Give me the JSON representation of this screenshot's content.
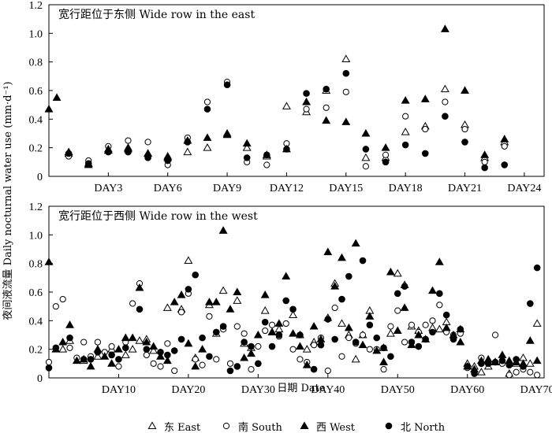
{
  "y_axis_label": "夜间液流量 Daily nocturnal water use (mm·d⁻¹)",
  "x_axis_label": "日期 Date",
  "legend": [
    {
      "key": "east",
      "label": "东 East",
      "marker": "open-triangle"
    },
    {
      "key": "south",
      "label": "南 South",
      "marker": "open-circle"
    },
    {
      "key": "west",
      "label": "西 West",
      "marker": "filled-triangle"
    },
    {
      "key": "north",
      "label": "北 North",
      "marker": "filled-circle"
    }
  ],
  "chart_data": [
    {
      "type": "scatter",
      "title": "宽行距位于东侧 Wide row in the east",
      "xlabel": "日期 Date",
      "ylabel": "夜间液流量 Daily nocturnal water use (mm·d⁻¹)",
      "xlim": [
        0,
        25
      ],
      "ylim": [
        0,
        1.2
      ],
      "yticks": [
        "0",
        "0.2",
        "0.4",
        "0.6",
        "0.8",
        "1.0",
        "1.2"
      ],
      "xticks": [
        {
          "x": 3,
          "label": "DAY3"
        },
        {
          "x": 6,
          "label": "DAY6"
        },
        {
          "x": 9,
          "label": "DAY9"
        },
        {
          "x": 12,
          "label": "DAY12"
        },
        {
          "x": 15,
          "label": "DAY15"
        },
        {
          "x": 18,
          "label": "DAY18"
        },
        {
          "x": 21,
          "label": "DAY21"
        },
        {
          "x": 24,
          "label": "DAY24"
        }
      ],
      "series": [
        {
          "name": "东 East",
          "x": [
            1,
            2,
            3,
            4,
            5,
            6,
            7,
            8,
            9,
            10,
            11,
            12,
            13,
            14,
            15,
            16,
            17,
            18,
            19,
            20,
            21,
            22,
            23
          ],
          "values": [
            0.16,
            0.09,
            0.18,
            0.2,
            0.16,
            0.13,
            0.17,
            0.2,
            0.3,
            0.2,
            0.14,
            0.49,
            0.45,
            0.6,
            0.82,
            0.13,
            0.13,
            0.31,
            0.35,
            0.61,
            0.36,
            0.13,
            0.24
          ]
        },
        {
          "name": "南 South",
          "x": [
            1,
            2,
            3,
            4,
            5,
            6,
            7,
            8,
            9,
            10,
            11,
            12,
            13,
            14,
            15,
            16,
            17,
            18,
            19,
            20,
            21,
            22,
            23
          ],
          "values": [
            0.14,
            0.11,
            0.21,
            0.25,
            0.24,
            0.08,
            0.27,
            0.52,
            0.66,
            0.1,
            0.08,
            0.23,
            0.47,
            0.48,
            0.59,
            0.07,
            0.15,
            0.42,
            0.33,
            0.52,
            0.33,
            0.1,
            0.21
          ]
        },
        {
          "name": "西 West",
          "x": [
            0,
            0.4,
            1,
            2,
            3,
            4,
            5,
            6,
            7,
            8,
            9,
            10,
            11,
            12,
            13,
            14,
            15,
            16,
            17,
            18,
            19,
            20,
            21,
            22,
            23
          ],
          "values": [
            0.47,
            0.55,
            0.17,
            0.08,
            0.19,
            0.19,
            0.16,
            0.14,
            0.25,
            0.27,
            0.29,
            0.23,
            0.15,
            0.19,
            0.52,
            0.39,
            0.38,
            0.3,
            0.2,
            0.53,
            0.54,
            1.03,
            0.6,
            0.15,
            0.26
          ]
        },
        {
          "name": "北 North",
          "x": [
            1,
            2,
            3,
            4,
            5,
            6,
            7,
            8,
            9,
            10,
            11,
            12,
            13,
            14,
            15,
            16,
            17,
            18,
            19,
            20,
            21,
            22,
            23
          ],
          "values": [
            0.16,
            0.09,
            0.17,
            0.17,
            0.13,
            0.11,
            0.24,
            0.47,
            0.64,
            0.13,
            0.15,
            0.19,
            0.58,
            0.61,
            0.72,
            0.19,
            0.1,
            0.22,
            0.16,
            0.42,
            0.24,
            0.06,
            0.08
          ]
        }
      ]
    },
    {
      "type": "scatter",
      "title": "宽行距位于西侧 Wide row in the west",
      "xlabel": "日期 Date",
      "ylabel": "夜间液流量 Daily nocturnal water use (mm·d⁻¹)",
      "xlim": [
        0,
        71
      ],
      "ylim": [
        0,
        1.2
      ],
      "yticks": [
        "0",
        "0.2",
        "0.4",
        "0.6",
        "0.8",
        "1.0",
        "1.2"
      ],
      "xticks": [
        {
          "x": 10,
          "label": "DAY10"
        },
        {
          "x": 20,
          "label": "DAY20"
        },
        {
          "x": 30,
          "label": "DAY30"
        },
        {
          "x": 40,
          "label": "DAY40"
        },
        {
          "x": 50,
          "label": "DAY50"
        },
        {
          "x": 60,
          "label": "DAY60"
        },
        {
          "x": 70,
          "label": "DAY70"
        }
      ],
      "series": [
        {
          "name": "东 East",
          "x": [
            2,
            3,
            5,
            7,
            9,
            11,
            12,
            13,
            14,
            15,
            17,
            19,
            20,
            21,
            23,
            24,
            25,
            27,
            28,
            29,
            31,
            32,
            33,
            35,
            36,
            37,
            38,
            40,
            41,
            42,
            43,
            44,
            45,
            46,
            48,
            49,
            50,
            51,
            52,
            53,
            55,
            56,
            57,
            59,
            60,
            61,
            62,
            63,
            64,
            66,
            67,
            68,
            69,
            70
          ],
          "values": [
            0.2,
            0.26,
            0.12,
            0.15,
            0.2,
            0.16,
            0.2,
            0.26,
            0.27,
            0.19,
            0.49,
            0.48,
            0.82,
            0.14,
            0.51,
            0.31,
            0.61,
            0.54,
            0.24,
            0.21,
            0.47,
            0.32,
            0.34,
            0.44,
            0.3,
            0.2,
            0.25,
            0.42,
            0.66,
            0.38,
            0.3,
            0.13,
            0.3,
            0.47,
            0.21,
            0.31,
            0.73,
            0.65,
            0.36,
            0.33,
            0.35,
            0.34,
            0.39,
            0.34,
            0.1,
            0.08,
            0.04,
            0.08,
            0.11,
            0.03,
            0.1,
            0.14,
            0.1,
            0.38
          ]
        },
        {
          "name": "南 South",
          "x": [
            0,
            1,
            2,
            3,
            4,
            5,
            6,
            7,
            8,
            9,
            10,
            11,
            12,
            13,
            14,
            15,
            16,
            17,
            18,
            19,
            20,
            21,
            22,
            23,
            24,
            25,
            26,
            27,
            28,
            29,
            30,
            31,
            32,
            33,
            34,
            35,
            36,
            37,
            38,
            39,
            40,
            41,
            42,
            43,
            44,
            45,
            46,
            47,
            48,
            49,
            50,
            51,
            52,
            53,
            54,
            55,
            56,
            57,
            58,
            59,
            60,
            61,
            62,
            63,
            64,
            65,
            66,
            67,
            68,
            69,
            70
          ],
          "values": [
            0.11,
            0.5,
            0.55,
            0.21,
            0.14,
            0.25,
            0.15,
            0.25,
            0.18,
            0.22,
            0.08,
            0.25,
            0.52,
            0.66,
            0.16,
            0.1,
            0.08,
            0.24,
            0.05,
            0.46,
            0.59,
            0.13,
            0.09,
            0.43,
            0.13,
            0.34,
            0.1,
            0.36,
            0.31,
            0.06,
            0.22,
            0.33,
            0.37,
            0.29,
            0.38,
            0.2,
            0.13,
            0.11,
            0.23,
            0.28,
            0.05,
            0.49,
            0.15,
            0.28,
            0.24,
            0.3,
            0.2,
            0.2,
            0.06,
            0.36,
            0.47,
            0.25,
            0.37,
            0.32,
            0.37,
            0.4,
            0.51,
            0.32,
            0.3,
            0.31,
            0.07,
            0.04,
            0.14,
            0.1,
            0.3,
            0.1,
            0.02,
            0.04,
            0.06,
            0.04,
            0.02
          ]
        },
        {
          "name": "西 West",
          "x": [
            0,
            1,
            2,
            3,
            4,
            5,
            6,
            7,
            8,
            9,
            10,
            11,
            12,
            13,
            14,
            15,
            16,
            17,
            18,
            19,
            20,
            21,
            22,
            23,
            24,
            25,
            26,
            27,
            28,
            29,
            30,
            31,
            32,
            33,
            34,
            35,
            36,
            37,
            38,
            39,
            40,
            41,
            42,
            43,
            44,
            45,
            46,
            47,
            48,
            49,
            50,
            51,
            52,
            53,
            54,
            55,
            56,
            57,
            58,
            59,
            60,
            61,
            62,
            63,
            64,
            65,
            66,
            67,
            68,
            69,
            70
          ],
          "values": [
            0.81,
            0.2,
            0.25,
            0.37,
            0.12,
            0.13,
            0.08,
            0.2,
            0.15,
            0.1,
            0.2,
            0.28,
            0.28,
            0.63,
            0.25,
            0.22,
            0.15,
            0.12,
            0.53,
            0.58,
            0.24,
            0.08,
            0.2,
            0.53,
            0.53,
            1.03,
            0.48,
            0.6,
            0.14,
            0.17,
            0.3,
            0.58,
            0.32,
            0.38,
            0.71,
            0.31,
            0.22,
            0.09,
            0.36,
            0.27,
            0.88,
            0.64,
            0.84,
            0.35,
            0.94,
            0.23,
            0.43,
            0.19,
            0.11,
            0.74,
            0.33,
            0.49,
            0.23,
            0.3,
            0.27,
            0.61,
            0.81,
            0.35,
            0.3,
            0.25,
            0.08,
            0.06,
            0.12,
            0.13,
            0.11,
            0.16,
            0.12,
            0.11,
            0.1,
            0.26,
            0.12
          ]
        },
        {
          "name": "北 North",
          "x": [
            0,
            1,
            3,
            5,
            6,
            7,
            9,
            10,
            11,
            13,
            14,
            16,
            17,
            18,
            19,
            20,
            21,
            22,
            23,
            24,
            25,
            26,
            27,
            28,
            29,
            30,
            31,
            32,
            33,
            34,
            35,
            36,
            38,
            39,
            40,
            41,
            42,
            43,
            44,
            45,
            46,
            47,
            48,
            49,
            50,
            51,
            52,
            53,
            54,
            55,
            56,
            57,
            58,
            59,
            60,
            61,
            62,
            63,
            64,
            65,
            66,
            67,
            68,
            69,
            70
          ],
          "values": [
            0.07,
            0.21,
            0.28,
            0.13,
            0.13,
            0.18,
            0.16,
            0.13,
            0.21,
            0.48,
            0.2,
            0.18,
            0.16,
            0.19,
            0.27,
            0.62,
            0.72,
            0.28,
            0.15,
            0.32,
            0.36,
            0.05,
            0.08,
            0.25,
            0.22,
            0.1,
            0.39,
            0.22,
            0.3,
            0.54,
            0.48,
            0.3,
            0.06,
            0.23,
            0.41,
            0.27,
            0.55,
            0.71,
            0.25,
            0.82,
            0.37,
            0.28,
            0.21,
            0.15,
            0.59,
            0.64,
            0.25,
            0.22,
            0.27,
            0.32,
            0.59,
            0.44,
            0.27,
            0.34,
            0.08,
            0.03,
            0.1,
            0.1,
            0.11,
            0.12,
            0.09,
            0.13,
            0.08,
            0.52,
            0.77
          ]
        }
      ]
    }
  ]
}
